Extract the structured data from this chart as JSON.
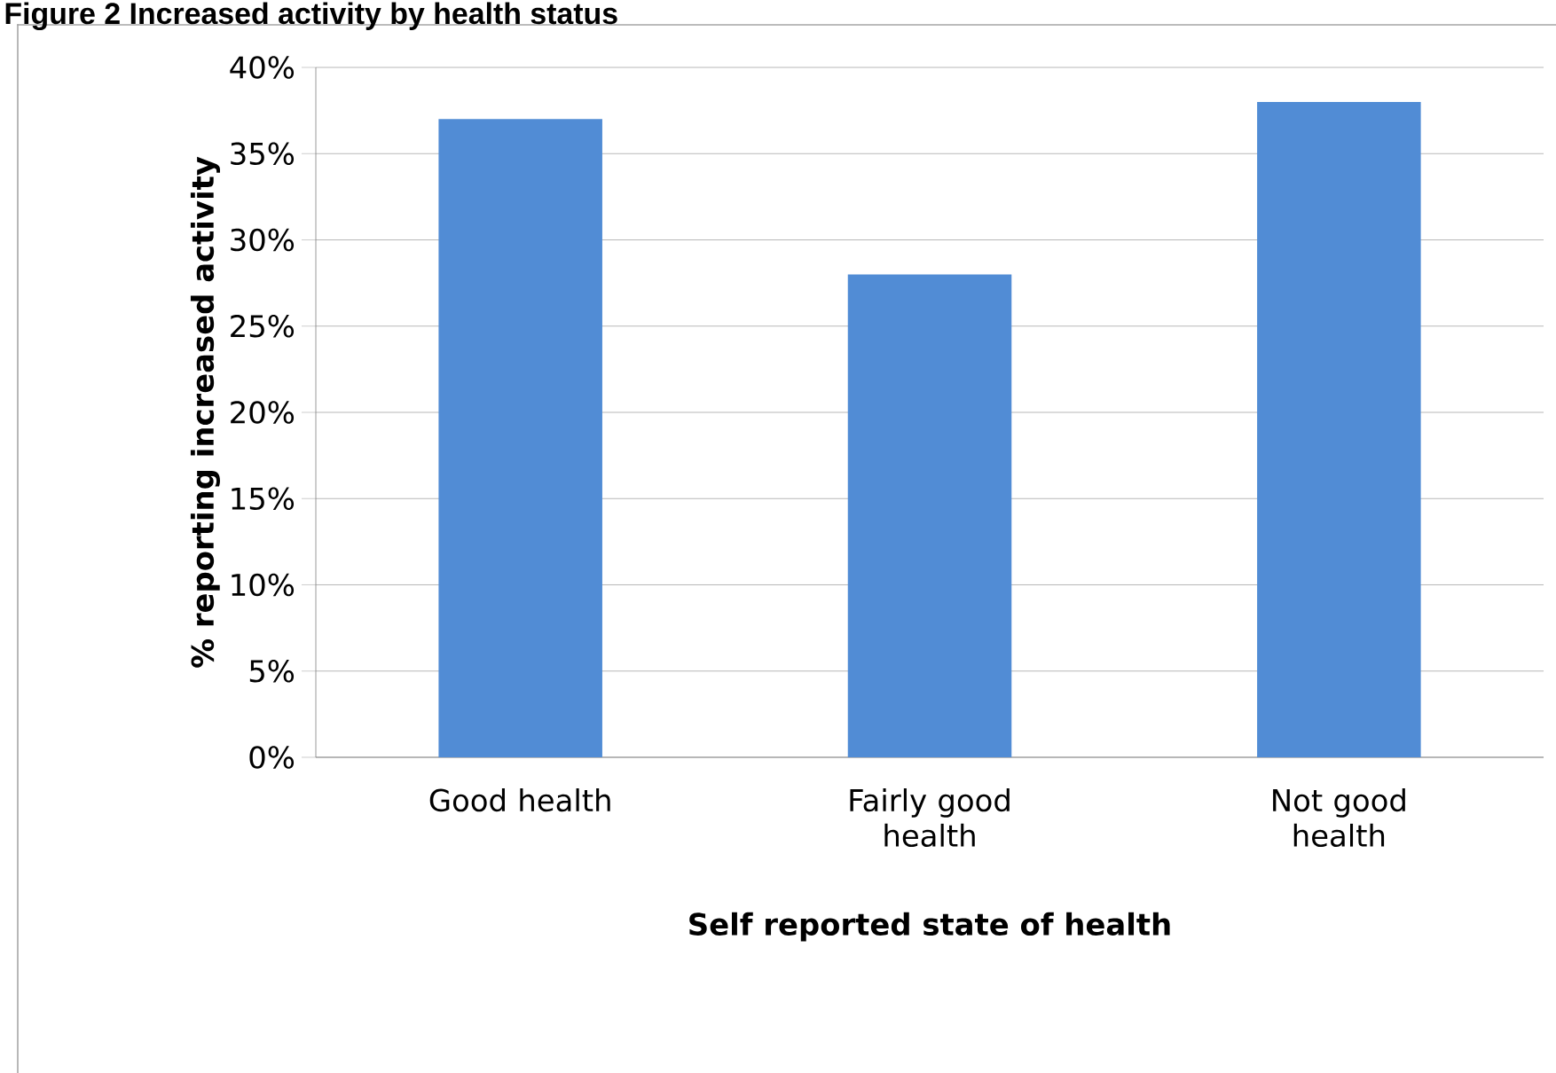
{
  "chart_data": {
    "type": "bar",
    "title": "Figure 2 Increased activity by health status",
    "xlabel": "Self reported state of health",
    "ylabel": "% reporting increased activity",
    "categories": [
      "Good health",
      "Fairly good health",
      "Not good health"
    ],
    "values": [
      37,
      28,
      38
    ],
    "color": "#518cd5",
    "ylim": [
      0,
      40
    ],
    "yticks": [
      {
        "value": 0,
        "label": "0%"
      },
      {
        "value": 5,
        "label": "5%"
      },
      {
        "value": 10,
        "label": "10%"
      },
      {
        "value": 15,
        "label": "15%"
      },
      {
        "value": 20,
        "label": "20%"
      },
      {
        "value": 25,
        "label": "25%"
      },
      {
        "value": 30,
        "label": "30%"
      },
      {
        "value": 35,
        "label": "35%"
      },
      {
        "value": 40,
        "label": "40%"
      }
    ],
    "grid": "y"
  }
}
